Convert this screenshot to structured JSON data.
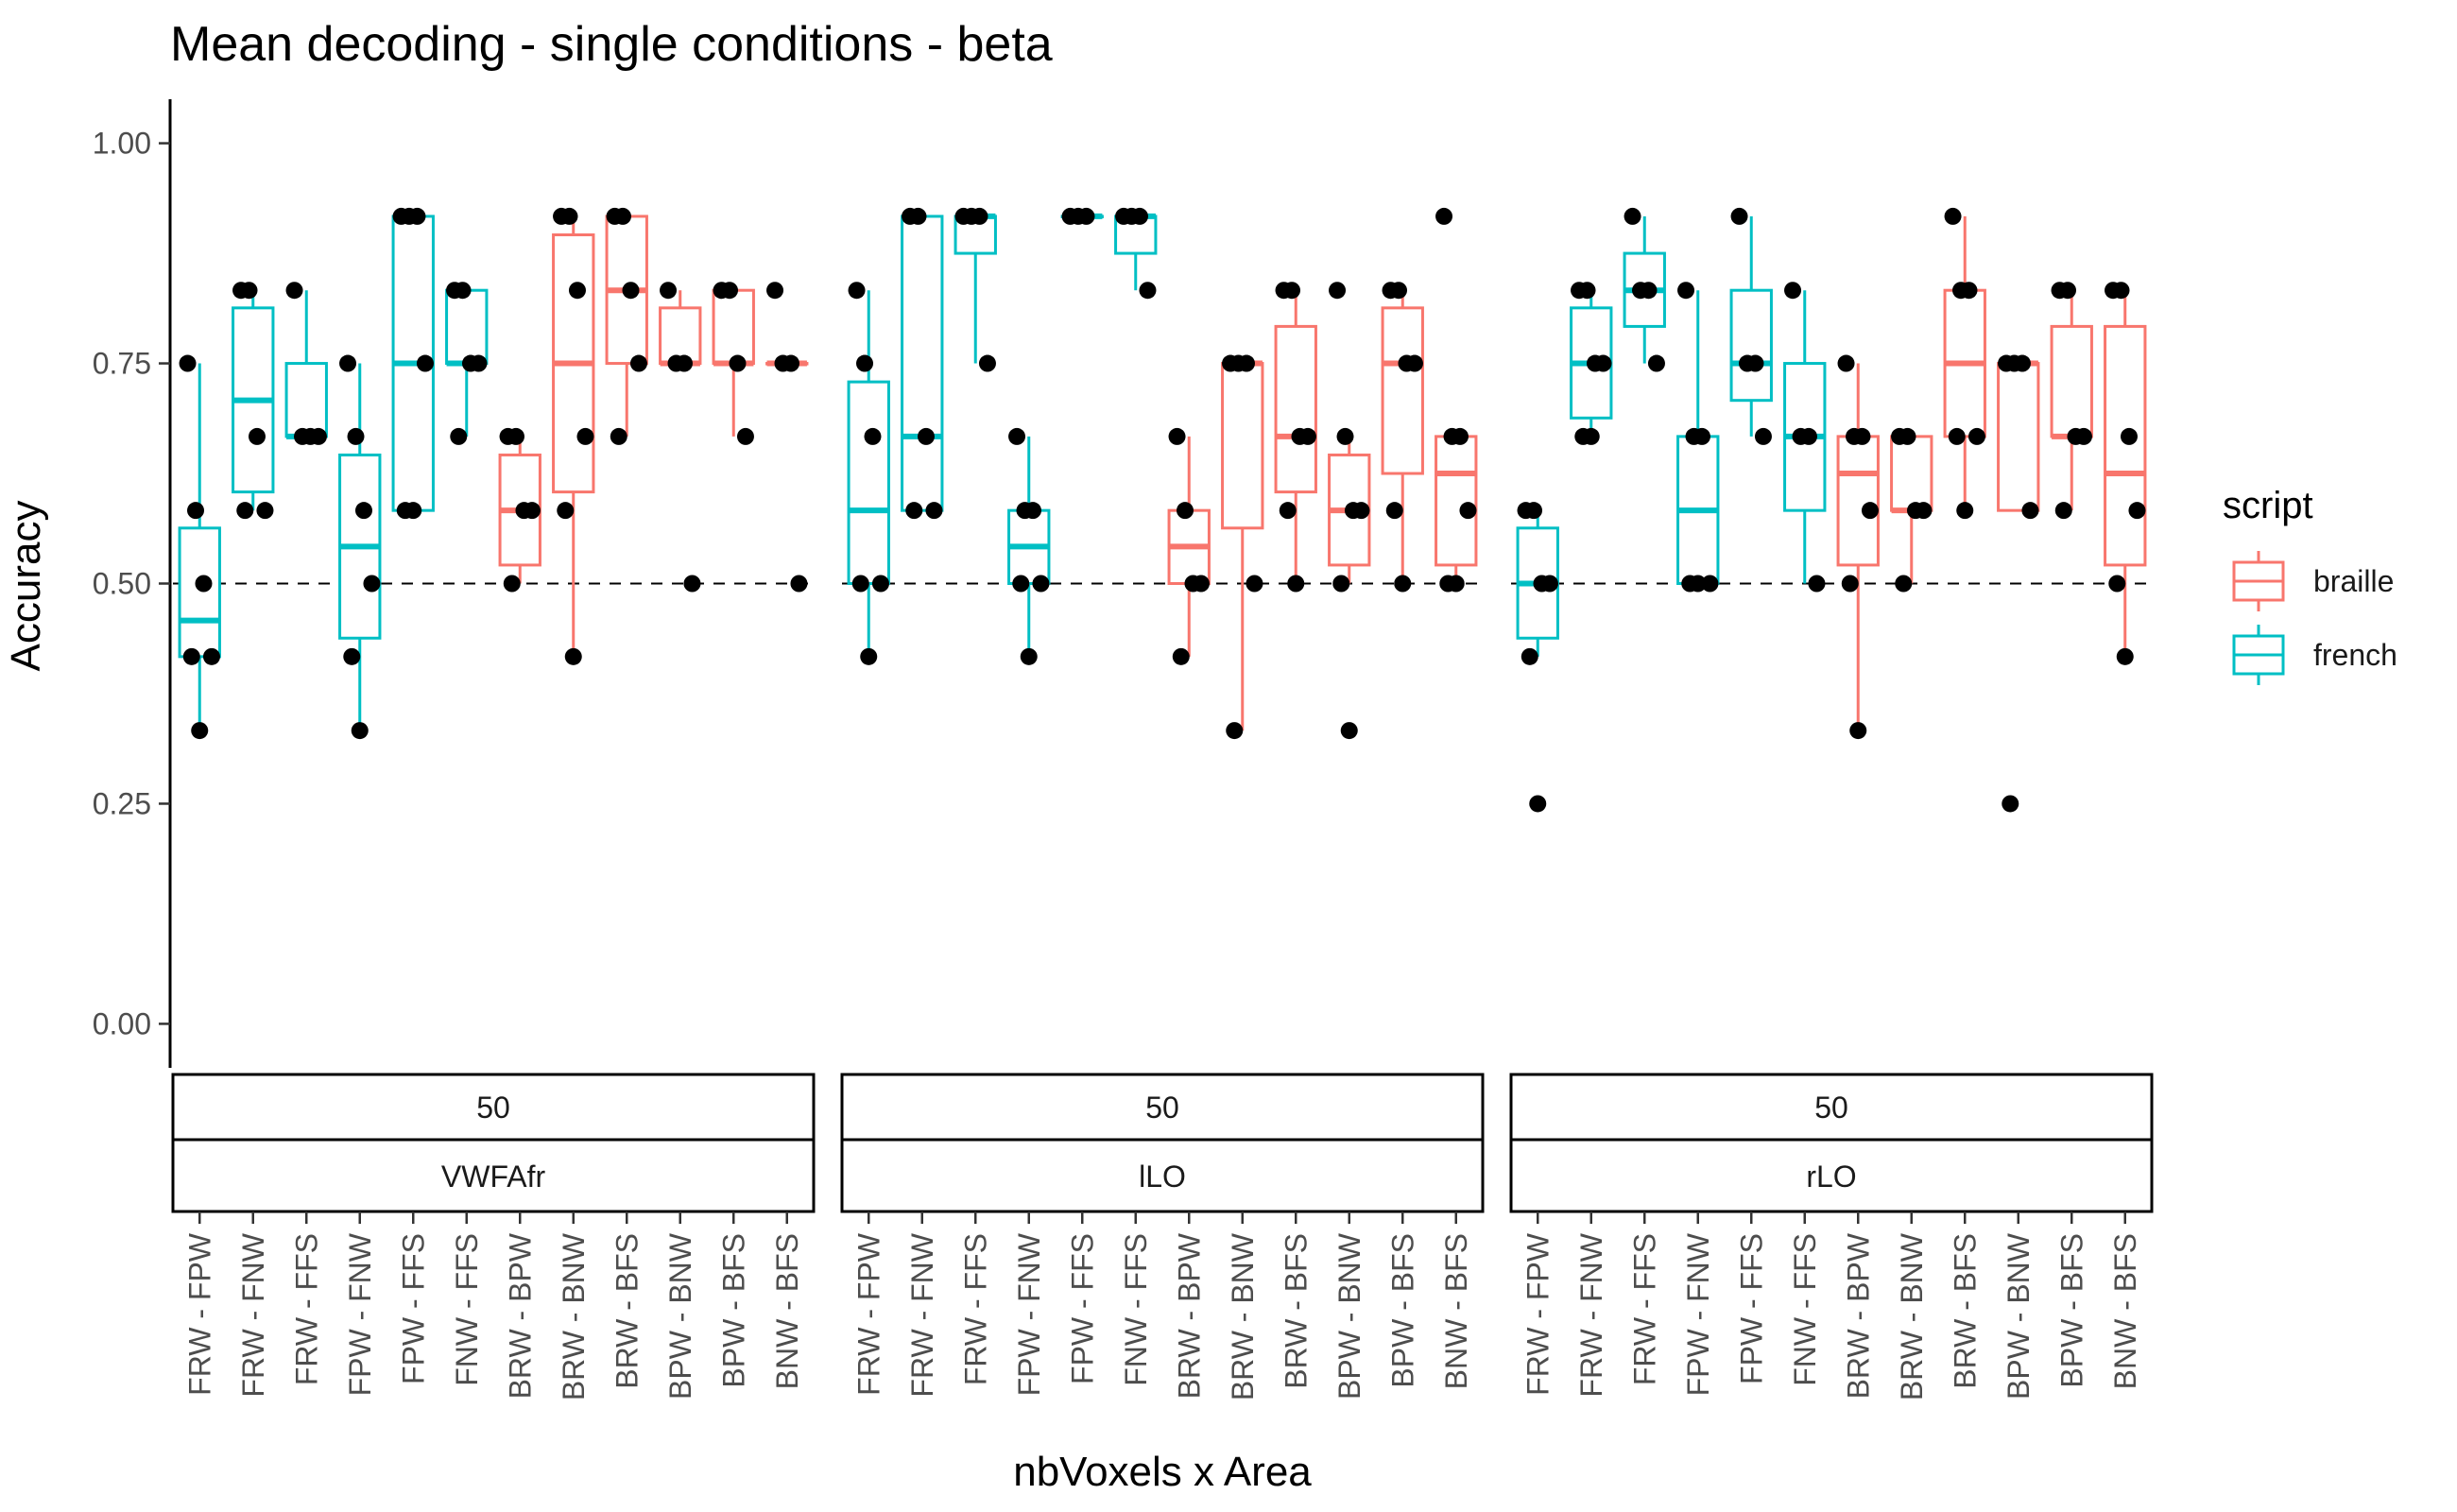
{
  "chart_data": {
    "type": "box",
    "title": "Mean decoding - single conditions - beta",
    "xlabel": "nbVoxels x Area",
    "ylabel": "Accuracy",
    "ylim": [
      -0.05,
      1.05
    ],
    "yticks": [
      "0.00",
      "0.25",
      "0.50",
      "0.75",
      "1.00"
    ],
    "reference_line": 0.5,
    "categories": [
      "FRW - FPW",
      "FRW - FNW",
      "FRW - FFS",
      "FPW - FNW",
      "FPW - FFS",
      "FNW - FFS",
      "BRW - BPW",
      "BRW - BNW",
      "BRW - BFS",
      "BPW - BNW",
      "BPW - BFS",
      "BNW - BFS"
    ],
    "category_script": [
      "french",
      "french",
      "french",
      "french",
      "french",
      "french",
      "braille",
      "braille",
      "braille",
      "braille",
      "braille",
      "braille"
    ],
    "legend": {
      "title": "script",
      "position": "right",
      "entries": [
        {
          "label": "braille",
          "color": "#F8766D"
        },
        {
          "label": "french",
          "color": "#00BFC4"
        }
      ]
    },
    "panels": [
      {
        "strip_top": "50",
        "strip_bottom": "VWFAfr",
        "boxes": [
          {
            "q1": 0.417,
            "median": 0.458,
            "q3": 0.563,
            "lo": 0.333,
            "hi": 0.75
          },
          {
            "q1": 0.604,
            "median": 0.708,
            "q3": 0.813,
            "lo": 0.583,
            "hi": 0.833
          },
          {
            "q1": 0.667,
            "median": 0.667,
            "q3": 0.75,
            "lo": 0.667,
            "hi": 0.833
          },
          {
            "q1": 0.438,
            "median": 0.542,
            "q3": 0.646,
            "lo": 0.333,
            "hi": 0.75
          },
          {
            "q1": 0.583,
            "median": 0.75,
            "q3": 0.917,
            "lo": 0.583,
            "hi": 0.917
          },
          {
            "q1": 0.75,
            "median": 0.75,
            "q3": 0.833,
            "lo": 0.667,
            "hi": 0.833
          },
          {
            "q1": 0.521,
            "median": 0.583,
            "q3": 0.646,
            "lo": 0.5,
            "hi": 0.667
          },
          {
            "q1": 0.604,
            "median": 0.75,
            "q3": 0.896,
            "lo": 0.417,
            "hi": 0.917
          },
          {
            "q1": 0.75,
            "median": 0.833,
            "q3": 0.917,
            "lo": 0.667,
            "hi": 0.917
          },
          {
            "q1": 0.75,
            "median": 0.75,
            "q3": 0.813,
            "lo": 0.75,
            "hi": 0.833
          },
          {
            "q1": 0.75,
            "median": 0.75,
            "q3": 0.833,
            "lo": 0.667,
            "hi": 0.833
          },
          {
            "q1": 0.75,
            "median": 0.75,
            "q3": 0.75,
            "lo": 0.75,
            "hi": 0.75
          }
        ],
        "points": [
          [
            0.75,
            0.583,
            0.5,
            0.417,
            0.417,
            0.333
          ],
          [
            0.833,
            0.833,
            0.667,
            0.583,
            0.583
          ],
          [
            0.833,
            0.667,
            0.667,
            0.667
          ],
          [
            0.75,
            0.667,
            0.583,
            0.5,
            0.417,
            0.333
          ],
          [
            0.917,
            0.917,
            0.917,
            0.75,
            0.583,
            0.583
          ],
          [
            0.833,
            0.833,
            0.75,
            0.75,
            0.667
          ],
          [
            0.667,
            0.667,
            0.583,
            0.583,
            0.5
          ],
          [
            0.917,
            0.917,
            0.833,
            0.667,
            0.583,
            0.417
          ],
          [
            0.917,
            0.917,
            0.833,
            0.75,
            0.667
          ],
          [
            0.833,
            0.75,
            0.75,
            0.5
          ],
          [
            0.833,
            0.833,
            0.75,
            0.667
          ],
          [
            0.833,
            0.75,
            0.75,
            0.5
          ]
        ]
      },
      {
        "strip_top": "50",
        "strip_bottom": "lLO",
        "boxes": [
          {
            "q1": 0.5,
            "median": 0.583,
            "q3": 0.729,
            "lo": 0.417,
            "hi": 0.833
          },
          {
            "q1": 0.583,
            "median": 0.667,
            "q3": 0.917,
            "lo": 0.583,
            "hi": 0.917
          },
          {
            "q1": 0.875,
            "median": 0.917,
            "q3": 0.917,
            "lo": 0.75,
            "hi": 0.917
          },
          {
            "q1": 0.5,
            "median": 0.542,
            "q3": 0.583,
            "lo": 0.417,
            "hi": 0.667
          },
          {
            "q1": 0.917,
            "median": 0.917,
            "q3": 0.917,
            "lo": 0.917,
            "hi": 0.917
          },
          {
            "q1": 0.875,
            "median": 0.917,
            "q3": 0.917,
            "lo": 0.833,
            "hi": 0.917
          },
          {
            "q1": 0.5,
            "median": 0.542,
            "q3": 0.583,
            "lo": 0.417,
            "hi": 0.667
          },
          {
            "q1": 0.563,
            "median": 0.75,
            "q3": 0.75,
            "lo": 0.333,
            "hi": 0.75
          },
          {
            "q1": 0.604,
            "median": 0.667,
            "q3": 0.792,
            "lo": 0.5,
            "hi": 0.833
          },
          {
            "q1": 0.521,
            "median": 0.583,
            "q3": 0.646,
            "lo": 0.5,
            "hi": 0.667
          },
          {
            "q1": 0.625,
            "median": 0.75,
            "q3": 0.813,
            "lo": 0.5,
            "hi": 0.833
          },
          {
            "q1": 0.521,
            "median": 0.625,
            "q3": 0.667,
            "lo": 0.5,
            "hi": 0.667
          }
        ],
        "points": [
          [
            0.833,
            0.75,
            0.667,
            0.5,
            0.5,
            0.417
          ],
          [
            0.917,
            0.917,
            0.667,
            0.583,
            0.583
          ],
          [
            0.917,
            0.917,
            0.917,
            0.75
          ],
          [
            0.667,
            0.583,
            0.583,
            0.5,
            0.5,
            0.417
          ],
          [
            0.917,
            0.917,
            0.917
          ],
          [
            0.917,
            0.917,
            0.917,
            0.833
          ],
          [
            0.667,
            0.583,
            0.5,
            0.5,
            0.417
          ],
          [
            0.75,
            0.75,
            0.75,
            0.5,
            0.333
          ],
          [
            0.833,
            0.833,
            0.667,
            0.667,
            0.583,
            0.5
          ],
          [
            0.833,
            0.667,
            0.583,
            0.583,
            0.5,
            0.333
          ],
          [
            0.833,
            0.833,
            0.75,
            0.75,
            0.583,
            0.5
          ],
          [
            0.917,
            0.667,
            0.667,
            0.583,
            0.5,
            0.5
          ]
        ]
      },
      {
        "strip_top": "50",
        "strip_bottom": "rLO",
        "boxes": [
          {
            "q1": 0.438,
            "median": 0.5,
            "q3": 0.563,
            "lo": 0.417,
            "hi": 0.583
          },
          {
            "q1": 0.688,
            "median": 0.75,
            "q3": 0.813,
            "lo": 0.667,
            "hi": 0.833
          },
          {
            "q1": 0.792,
            "median": 0.833,
            "q3": 0.875,
            "lo": 0.75,
            "hi": 0.917
          },
          {
            "q1": 0.5,
            "median": 0.583,
            "q3": 0.667,
            "lo": 0.5,
            "hi": 0.833
          },
          {
            "q1": 0.708,
            "median": 0.75,
            "q3": 0.833,
            "lo": 0.667,
            "hi": 0.917
          },
          {
            "q1": 0.583,
            "median": 0.667,
            "q3": 0.75,
            "lo": 0.5,
            "hi": 0.833
          },
          {
            "q1": 0.521,
            "median": 0.625,
            "q3": 0.667,
            "lo": 0.333,
            "hi": 0.75
          },
          {
            "q1": 0.583,
            "median": 0.583,
            "q3": 0.667,
            "lo": 0.5,
            "hi": 0.667
          },
          {
            "q1": 0.667,
            "median": 0.75,
            "q3": 0.833,
            "lo": 0.583,
            "hi": 0.917
          },
          {
            "q1": 0.583,
            "median": 0.75,
            "q3": 0.75,
            "lo": 0.583,
            "hi": 0.75
          },
          {
            "q1": 0.667,
            "median": 0.667,
            "q3": 0.792,
            "lo": 0.583,
            "hi": 0.833
          },
          {
            "q1": 0.521,
            "median": 0.625,
            "q3": 0.792,
            "lo": 0.417,
            "hi": 0.833
          }
        ],
        "points": [
          [
            0.583,
            0.583,
            0.5,
            0.5,
            0.417,
            0.25
          ],
          [
            0.833,
            0.833,
            0.75,
            0.75,
            0.667,
            0.667
          ],
          [
            0.917,
            0.833,
            0.833,
            0.75
          ],
          [
            0.833,
            0.667,
            0.667,
            0.5,
            0.5,
            0.5
          ],
          [
            0.917,
            0.75,
            0.75,
            0.667
          ],
          [
            0.833,
            0.667,
            0.667,
            0.5
          ],
          [
            0.75,
            0.667,
            0.667,
            0.583,
            0.5,
            0.333
          ],
          [
            0.667,
            0.667,
            0.583,
            0.583,
            0.5
          ],
          [
            0.917,
            0.833,
            0.833,
            0.667,
            0.667,
            0.583
          ],
          [
            0.75,
            0.75,
            0.75,
            0.583,
            0.25
          ],
          [
            0.833,
            0.833,
            0.667,
            0.667,
            0.583
          ],
          [
            0.833,
            0.833,
            0.667,
            0.583,
            0.5,
            0.417
          ]
        ]
      }
    ]
  }
}
